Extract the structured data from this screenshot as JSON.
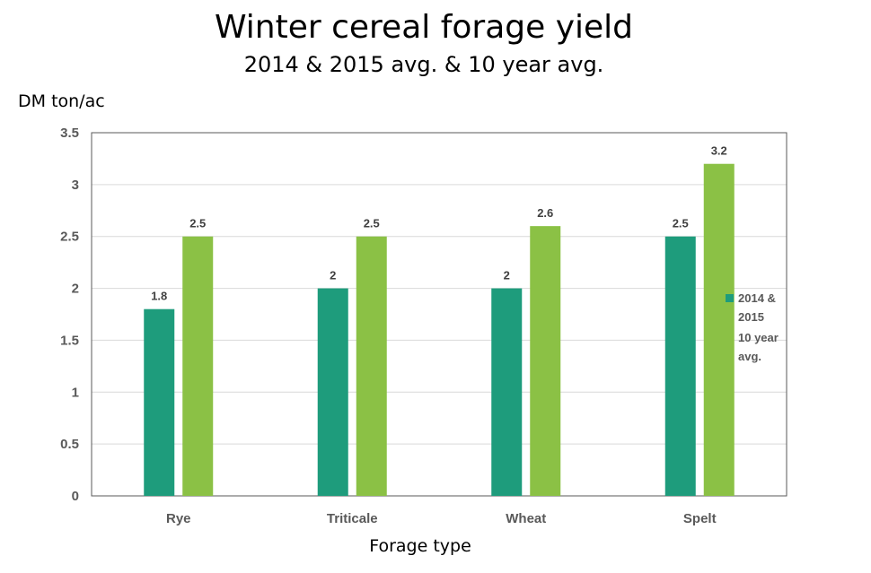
{
  "chart_data": {
    "type": "bar",
    "title": "Winter cereal forage yield",
    "subtitle": "2014 & 2015 avg. & 10 year avg.",
    "ylabel": "DM ton/ac",
    "xlabel": "Forage type",
    "categories": [
      "Rye",
      "Triticale",
      "Wheat",
      "Spelt"
    ],
    "series": [
      {
        "name": "2014 & 2015",
        "values": [
          1.8,
          2,
          2,
          2.5
        ],
        "color": "#1e9c7c"
      },
      {
        "name": "10 year avg.",
        "values": [
          2.5,
          2.5,
          2.6,
          3.2
        ],
        "color": "#8bc145"
      }
    ],
    "ylim": [
      0,
      3.5
    ],
    "yticks": [
      "0",
      "0.5",
      "1",
      "1.5",
      "2",
      "2.5",
      "3",
      "3.5"
    ],
    "grid": true,
    "legend_position": "right"
  }
}
